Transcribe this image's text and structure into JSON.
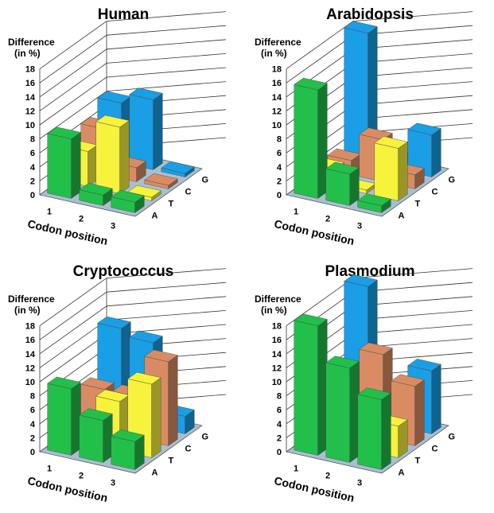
{
  "colors": {
    "A": "#22c04a",
    "T": "#f7f23c",
    "C": "#d98c64",
    "G": "#1a9ee6",
    "floor": "#a9bfd0"
  },
  "chart_data": [
    {
      "type": "bar3d",
      "title": "Human",
      "ylabel": "Difference",
      "ylabel_unit": "(in %)",
      "xlabel": "Codon position",
      "x_categories": [
        "1",
        "2",
        "3"
      ],
      "depth_categories": [
        "A",
        "T",
        "C",
        "G"
      ],
      "ylim": [
        0,
        18
      ],
      "yticks": [
        0,
        2,
        4,
        6,
        8,
        10,
        12,
        14,
        16,
        18
      ],
      "values": {
        "A": [
          8.5,
          1.5,
          1.5
        ],
        "T": [
          5.0,
          9.5,
          0.5
        ],
        "C": [
          6.5,
          2.0,
          0.5
        ],
        "G": [
          8.5,
          10.0,
          0.5
        ]
      }
    },
    {
      "type": "bar3d",
      "title": "Arabidopsis",
      "ylabel": "Difference",
      "ylabel_unit": "(in %)",
      "xlabel": "Codon position",
      "x_categories": [
        "1",
        "2",
        "3"
      ],
      "depth_categories": [
        "A",
        "T",
        "C",
        "G"
      ],
      "ylim": [
        0,
        18
      ],
      "yticks": [
        0,
        2,
        4,
        6,
        8,
        10,
        12,
        14,
        16,
        18
      ],
      "values": {
        "A": [
          15.5,
          4.5,
          1.0
        ],
        "T": [
          2.5,
          0.5,
          7.5
        ],
        "C": [
          2.0,
          6.0,
          2.0
        ],
        "G": [
          18.5,
          1.5,
          6.0
        ]
      }
    },
    {
      "type": "bar3d",
      "title": "Cryptococcus",
      "ylabel": "Difference",
      "ylabel_unit": "(in %)",
      "xlabel": "Codon position",
      "x_categories": [
        "1",
        "2",
        "3"
      ],
      "depth_categories": [
        "A",
        "T",
        "C",
        "G"
      ],
      "ylim": [
        0,
        18
      ],
      "yticks": [
        0,
        2,
        4,
        6,
        8,
        10,
        12,
        14,
        16,
        18
      ],
      "values": {
        "A": [
          9.5,
          6.0,
          4.0
        ],
        "T": [
          0.5,
          7.0,
          10.5
        ],
        "C": [
          6.0,
          6.0,
          12.0
        ],
        "G": [
          13.0,
          12.0,
          2.5
        ]
      }
    },
    {
      "type": "bar3d",
      "title": "Plasmodium",
      "ylabel": "Difference",
      "ylabel_unit": "(in %)",
      "xlabel": "Codon position",
      "x_categories": [
        "1",
        "2",
        "3"
      ],
      "depth_categories": [
        "A",
        "T",
        "C",
        "G"
      ],
      "ylim": [
        0,
        18
      ],
      "yticks": [
        0,
        2,
        4,
        6,
        8,
        10,
        12,
        14,
        16,
        18
      ],
      "values": {
        "A": [
          18.5,
          13.5,
          10.0
        ],
        "T": [
          3.5,
          1.0,
          4.5
        ],
        "C": [
          8.5,
          12.0,
          8.5
        ],
        "G": [
          19.0,
          4.0,
          9.0
        ]
      }
    }
  ]
}
